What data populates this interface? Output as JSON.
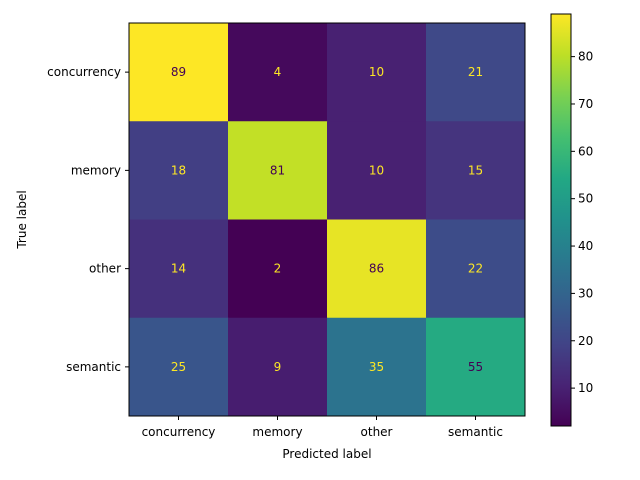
{
  "chart_data": {
    "type": "heatmap",
    "title": "",
    "xlabel": "Predicted label",
    "ylabel": "True label",
    "x_categories": [
      "concurrency",
      "memory",
      "other",
      "semantic"
    ],
    "y_categories": [
      "concurrency",
      "memory",
      "other",
      "semantic"
    ],
    "values": [
      [
        89,
        4,
        10,
        21
      ],
      [
        18,
        81,
        10,
        15
      ],
      [
        14,
        2,
        86,
        22
      ],
      [
        25,
        9,
        35,
        55
      ]
    ],
    "colormap": "viridis",
    "color_range": [
      2,
      89
    ],
    "colorbar_ticks": [
      10,
      20,
      30,
      40,
      50,
      60,
      70,
      80
    ],
    "text_color_dark_cells": "#fde725",
    "text_color_light_cells": "#440154"
  }
}
